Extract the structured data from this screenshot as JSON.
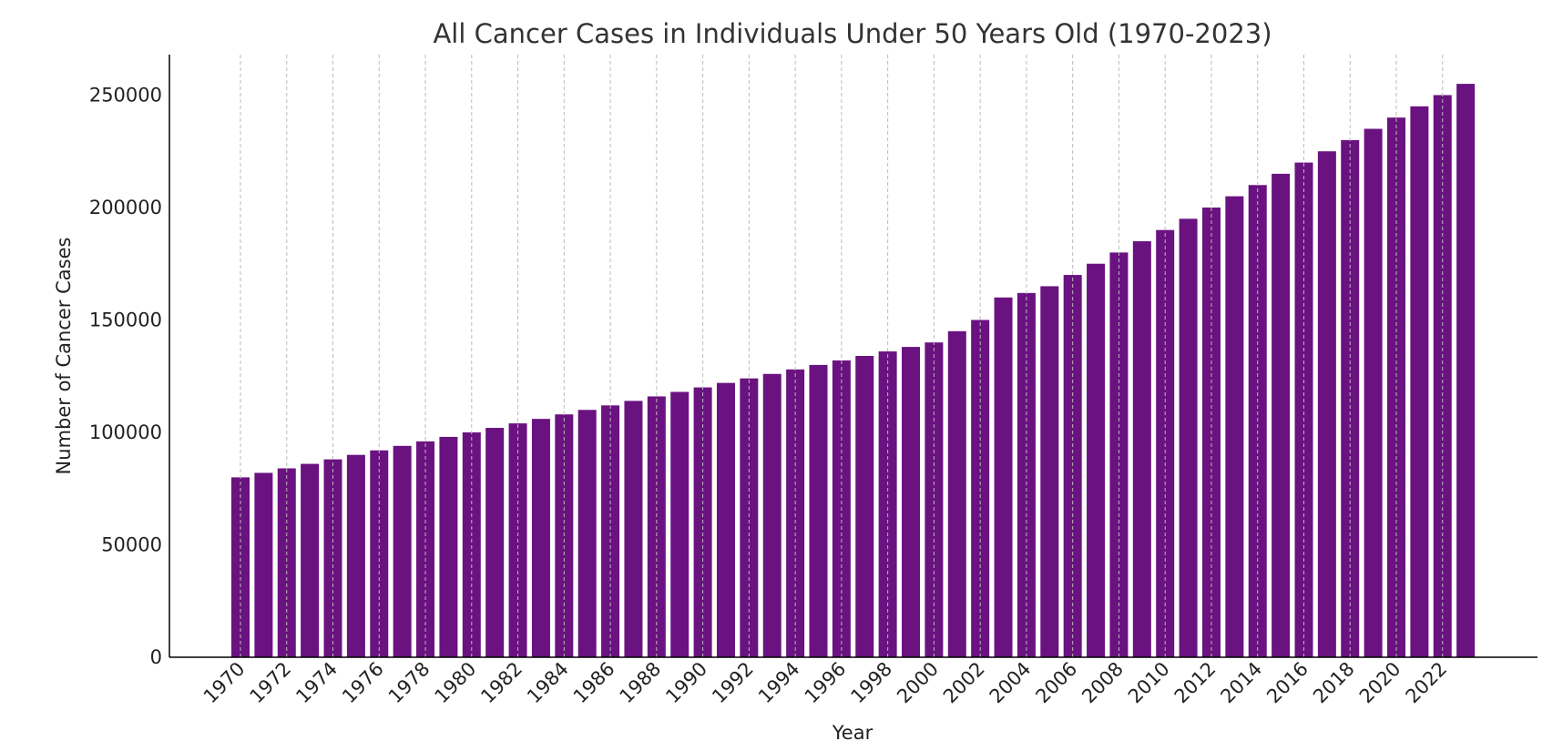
{
  "chart_data": {
    "type": "bar",
    "title": "All Cancer Cases in Individuals Under 50 Years Old (1970-2023)",
    "xlabel": "Year",
    "ylabel": "Number of Cancer Cases",
    "ylim": [
      0,
      268000
    ],
    "yticks": [
      0,
      50000,
      100000,
      150000,
      200000,
      250000
    ],
    "xtick_labels": [
      "1970",
      "1972",
      "1974",
      "1976",
      "1978",
      "1980",
      "1982",
      "1984",
      "1986",
      "1988",
      "1990",
      "1992",
      "1994",
      "1996",
      "1998",
      "2000",
      "2002",
      "2004",
      "2006",
      "2008",
      "2010",
      "2012",
      "2014",
      "2016",
      "2018",
      "2020",
      "2022"
    ],
    "grid": "vertical dashed at labeled years",
    "bar_color": "#6a1280",
    "categories": [
      1970,
      1971,
      1972,
      1973,
      1974,
      1975,
      1976,
      1977,
      1978,
      1979,
      1980,
      1981,
      1982,
      1983,
      1984,
      1985,
      1986,
      1987,
      1988,
      1989,
      1990,
      1991,
      1992,
      1993,
      1994,
      1995,
      1996,
      1997,
      1998,
      1999,
      2000,
      2001,
      2002,
      2003,
      2004,
      2005,
      2006,
      2007,
      2008,
      2009,
      2010,
      2011,
      2012,
      2013,
      2014,
      2015,
      2016,
      2017,
      2018,
      2019,
      2020,
      2021,
      2022,
      2023
    ],
    "values": [
      80000,
      82000,
      84000,
      86000,
      88000,
      90000,
      92000,
      94000,
      96000,
      98000,
      100000,
      102000,
      104000,
      106000,
      108000,
      110000,
      112000,
      114000,
      116000,
      118000,
      120000,
      122000,
      124000,
      126000,
      128000,
      130000,
      132000,
      134000,
      136000,
      138000,
      140000,
      145000,
      150000,
      160000,
      162000,
      165000,
      170000,
      175000,
      180000,
      185000,
      190000,
      195000,
      200000,
      205000,
      210000,
      215000,
      220000,
      225000,
      230000,
      235000,
      240000,
      245000,
      250000,
      255000
    ]
  }
}
